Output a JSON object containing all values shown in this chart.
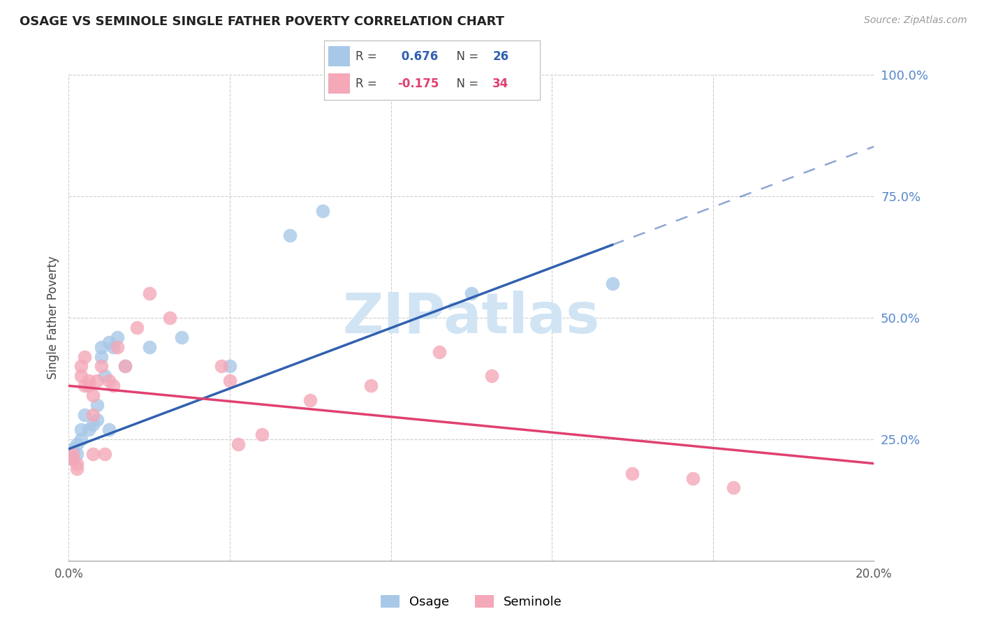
{
  "title": "OSAGE VS SEMINOLE SINGLE FATHER POVERTY CORRELATION CHART",
  "source": "Source: ZipAtlas.com",
  "ylabel": "Single Father Poverty",
  "xlim": [
    0.0,
    0.2
  ],
  "ylim": [
    0.0,
    1.0
  ],
  "yticks": [
    0.25,
    0.5,
    0.75,
    1.0
  ],
  "ytick_labels": [
    "25.0%",
    "50.0%",
    "75.0%",
    "100.0%"
  ],
  "xticks": [
    0.0,
    0.04,
    0.08,
    0.12,
    0.16,
    0.2
  ],
  "xtick_labels": [
    "0.0%",
    "",
    "",
    "",
    "",
    "20.0%"
  ],
  "osage_R": 0.676,
  "osage_N": 26,
  "seminole_R": -0.175,
  "seminole_N": 34,
  "osage_color": "#a8c8e8",
  "seminole_color": "#f4a8b8",
  "osage_line_color": "#3060b0",
  "seminole_line_color": "#e04070",
  "watermark_color": "#d0e4f4",
  "background_color": "#ffffff",
  "grid_color": "#cccccc",
  "osage_x": [
    0.001,
    0.001,
    0.002,
    0.002,
    0.003,
    0.003,
    0.004,
    0.005,
    0.006,
    0.007,
    0.007,
    0.008,
    0.008,
    0.009,
    0.01,
    0.01,
    0.011,
    0.012,
    0.014,
    0.02,
    0.028,
    0.04,
    0.055,
    0.063,
    0.1,
    0.135
  ],
  "osage_y": [
    0.21,
    0.23,
    0.24,
    0.22,
    0.27,
    0.25,
    0.3,
    0.27,
    0.28,
    0.32,
    0.29,
    0.42,
    0.44,
    0.38,
    0.27,
    0.45,
    0.44,
    0.46,
    0.4,
    0.44,
    0.46,
    0.4,
    0.67,
    0.72,
    0.55,
    0.57
  ],
  "seminole_x": [
    0.001,
    0.001,
    0.002,
    0.002,
    0.003,
    0.003,
    0.004,
    0.004,
    0.005,
    0.005,
    0.006,
    0.006,
    0.006,
    0.007,
    0.008,
    0.009,
    0.01,
    0.011,
    0.012,
    0.014,
    0.017,
    0.02,
    0.025,
    0.038,
    0.04,
    0.042,
    0.048,
    0.06,
    0.075,
    0.092,
    0.105,
    0.14,
    0.155,
    0.165
  ],
  "seminole_y": [
    0.21,
    0.22,
    0.2,
    0.19,
    0.38,
    0.4,
    0.36,
    0.42,
    0.37,
    0.36,
    0.3,
    0.34,
    0.22,
    0.37,
    0.4,
    0.22,
    0.37,
    0.36,
    0.44,
    0.4,
    0.48,
    0.55,
    0.5,
    0.4,
    0.37,
    0.24,
    0.26,
    0.33,
    0.36,
    0.43,
    0.38,
    0.18,
    0.17,
    0.15
  ],
  "osage_line_x0": 0.0,
  "osage_line_y0": 0.23,
  "osage_line_x1": 0.135,
  "osage_line_y1": 0.65,
  "seminole_line_x0": 0.0,
  "seminole_line_y0": 0.36,
  "seminole_line_x1": 0.2,
  "seminole_line_y1": 0.2
}
